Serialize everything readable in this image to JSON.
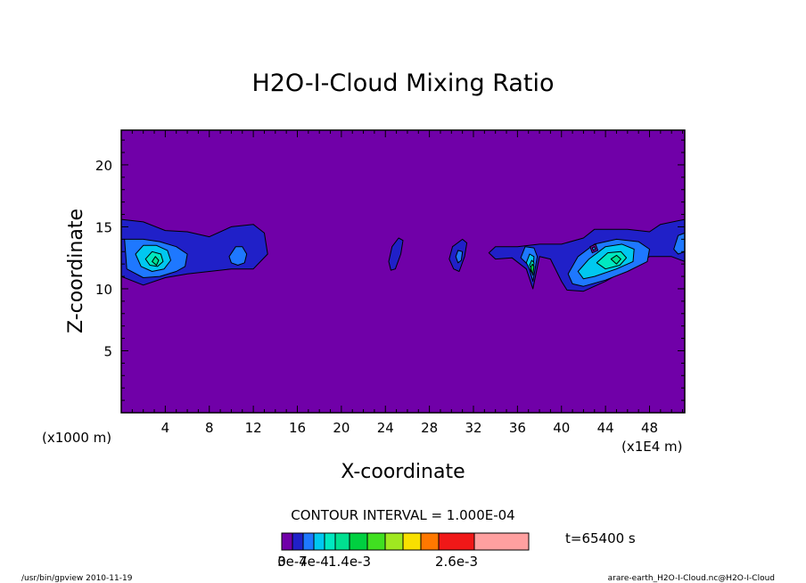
{
  "chart_data": {
    "type": "heatmap",
    "title": "H2O-I-Cloud Mixing Ratio",
    "xlabel": "X-coordinate",
    "ylabel": "Z-coordinate",
    "x_unit_left": "(x1000 m)",
    "x_unit_right": "(x1E4 m)",
    "xlim": [
      0,
      51.2
    ],
    "ylim": [
      0,
      22.8
    ],
    "x_ticks": [
      4,
      8,
      12,
      16,
      20,
      24,
      28,
      32,
      36,
      40,
      44,
      48
    ],
    "x_tick_labels": [
      "4",
      "8",
      "12",
      "16",
      "20",
      "24",
      "28",
      "32",
      "36",
      "40",
      "44",
      "48"
    ],
    "y_ticks": [
      5,
      10,
      15,
      20
    ],
    "y_tick_labels": [
      "5",
      "10",
      "15",
      "20"
    ],
    "contour_interval_label": "CONTOUR INTERVAL = 1.000E-04",
    "time_label": "t=65400 s",
    "colorbar": {
      "colors": [
        "#7000a8",
        "#2020c8",
        "#1e78ff",
        "#00c8f0",
        "#00e8c0",
        "#00e090",
        "#00d040",
        "#40e020",
        "#a0e820",
        "#f8e000",
        "#ff7800",
        "#f01818",
        "#ffa0a0"
      ],
      "tick_labels": [
        "0",
        "3e-4",
        "7e-4",
        "1.4e-3",
        "2.6e-3"
      ],
      "tick_positions": [
        0,
        1,
        3,
        6,
        11.5
      ]
    },
    "cloud_levels": [
      {
        "level": 1,
        "color": "#2020c8",
        "regions": [
          {
            "name": "cloud-west",
            "pts": [
              [
                0,
                15.6
              ],
              [
                2,
                15.4
              ],
              [
                4,
                14.7
              ],
              [
                6,
                14.6
              ],
              [
                8,
                14.2
              ],
              [
                10,
                15
              ],
              [
                12,
                15.2
              ],
              [
                13,
                14.5
              ],
              [
                13.3,
                12.8
              ],
              [
                12,
                11.6
              ],
              [
                10,
                11.6
              ],
              [
                8,
                11.4
              ],
              [
                6,
                11.2
              ],
              [
                4,
                10.9
              ],
              [
                2,
                10.3
              ],
              [
                0,
                11
              ]
            ]
          },
          {
            "name": "cloud-24",
            "pts": [
              [
                24.3,
                12.2
              ],
              [
                24.6,
                13.4
              ],
              [
                25.2,
                14.1
              ],
              [
                25.6,
                13.9
              ],
              [
                25.4,
                12.8
              ],
              [
                24.9,
                11.6
              ],
              [
                24.5,
                11.5
              ]
            ]
          },
          {
            "name": "cloud-30",
            "pts": [
              [
                29.8,
                12.4
              ],
              [
                30.1,
                13.4
              ],
              [
                31,
                14
              ],
              [
                31.4,
                13.7
              ],
              [
                31.2,
                12.6
              ],
              [
                30.7,
                11.4
              ],
              [
                30.2,
                11.6
              ]
            ]
          },
          {
            "name": "cloud-east",
            "pts": [
              [
                33.4,
                12.9
              ],
              [
                34,
                13.4
              ],
              [
                36,
                13.4
              ],
              [
                38,
                13.6
              ],
              [
                40,
                13.6
              ],
              [
                42,
                14.1
              ],
              [
                43,
                14.8
              ],
              [
                46,
                14.8
              ],
              [
                48,
                14.6
              ],
              [
                49,
                15.2
              ],
              [
                51.2,
                15.6
              ],
              [
                51.2,
                12.2
              ],
              [
                50,
                12.6
              ],
              [
                48,
                12.6
              ],
              [
                46,
                11.6
              ],
              [
                44,
                10.6
              ],
              [
                42,
                9.8
              ],
              [
                40.5,
                9.9
              ],
              [
                40,
                10.6
              ],
              [
                39,
                12.4
              ],
              [
                38,
                12.6
              ],
              [
                37.4,
                10
              ],
              [
                36.8,
                11.6
              ],
              [
                35.5,
                12.5
              ],
              [
                34,
                12.4
              ]
            ]
          }
        ]
      },
      {
        "level": 2,
        "color": "#1e78ff",
        "regions": [
          {
            "name": "core-west-1",
            "pts": [
              [
                0.3,
                14
              ],
              [
                2,
                14
              ],
              [
                3.5,
                13.8
              ],
              [
                5,
                13.4
              ],
              [
                6,
                12.8
              ],
              [
                5.8,
                11.8
              ],
              [
                5,
                11.4
              ],
              [
                3.5,
                11
              ],
              [
                2,
                10.9
              ],
              [
                0.5,
                11.6
              ]
            ]
          },
          {
            "name": "core-west-2",
            "pts": [
              [
                9.8,
                12.6
              ],
              [
                10.4,
                13.4
              ],
              [
                11,
                13.4
              ],
              [
                11.4,
                12.8
              ],
              [
                11.2,
                12.1
              ],
              [
                10.6,
                11.9
              ],
              [
                10,
                12.1
              ]
            ]
          },
          {
            "name": "core-30",
            "pts": [
              [
                30.4,
                12.6
              ],
              [
                30.6,
                13.1
              ],
              [
                31,
                13
              ],
              [
                30.9,
                12.3
              ],
              [
                30.6,
                12.1
              ]
            ]
          },
          {
            "name": "core-37",
            "pts": [
              [
                36.3,
                12.5
              ],
              [
                36.7,
                13.4
              ],
              [
                37.5,
                13.3
              ],
              [
                37.8,
                12.6
              ],
              [
                37.4,
                10.6
              ],
              [
                37,
                11.9
              ]
            ]
          },
          {
            "name": "core-east",
            "pts": [
              [
                40.6,
                11.2
              ],
              [
                41.5,
                12.6
              ],
              [
                43,
                13.6
              ],
              [
                45,
                14
              ],
              [
                47,
                13.8
              ],
              [
                48,
                13.2
              ],
              [
                47.8,
                12.2
              ],
              [
                46,
                11.4
              ],
              [
                44,
                10.7
              ],
              [
                42,
                10.2
              ],
              [
                41,
                10.4
              ]
            ]
          },
          {
            "name": "core-east-right",
            "pts": [
              [
                50.2,
                13.2
              ],
              [
                50.6,
                14.3
              ],
              [
                51.2,
                14.5
              ],
              [
                51.2,
                13
              ],
              [
                50.6,
                12.8
              ]
            ]
          }
        ]
      },
      {
        "level": 3,
        "color": "#00c8f0",
        "regions": [
          {
            "name": "west-3",
            "pts": [
              [
                1.3,
                12.8
              ],
              [
                2,
                13.5
              ],
              [
                3.2,
                13.5
              ],
              [
                4.2,
                13.1
              ],
              [
                4.5,
                12.3
              ],
              [
                3.9,
                11.6
              ],
              [
                2.8,
                11.4
              ],
              [
                1.8,
                11.8
              ]
            ]
          },
          {
            "name": "east-3",
            "pts": [
              [
                41.5,
                11.4
              ],
              [
                42.5,
                12.4
              ],
              [
                44,
                13.4
              ],
              [
                45.5,
                13.6
              ],
              [
                46.6,
                13.2
              ],
              [
                46.5,
                12.2
              ],
              [
                45,
                11.6
              ],
              [
                43,
                11
              ],
              [
                42,
                10.8
              ]
            ]
          },
          {
            "name": "37-3",
            "pts": [
              [
                36.8,
                12.1
              ],
              [
                37.1,
                12.8
              ],
              [
                37.5,
                12.6
              ],
              [
                37.4,
                11.2
              ],
              [
                37.1,
                11.6
              ]
            ]
          }
        ]
      },
      {
        "level": 4,
        "color": "#00e8c0",
        "regions": [
          {
            "name": "west-4",
            "pts": [
              [
                2.2,
                12.4
              ],
              [
                2.8,
                13
              ],
              [
                3.6,
                12.8
              ],
              [
                3.8,
                12.2
              ],
              [
                3.3,
                11.8
              ],
              [
                2.6,
                11.9
              ]
            ]
          },
          {
            "name": "east-4",
            "pts": [
              [
                43.2,
                12.1
              ],
              [
                44.2,
                12.9
              ],
              [
                45.4,
                13
              ],
              [
                45.9,
                12.5
              ],
              [
                45.3,
                11.9
              ],
              [
                44,
                11.6
              ]
            ]
          },
          {
            "name": "37-4",
            "pts": [
              [
                37.1,
                11.9
              ],
              [
                37.3,
                12.3
              ],
              [
                37.5,
                12.1
              ],
              [
                37.4,
                11.4
              ]
            ]
          }
        ]
      },
      {
        "level": 5,
        "color": "#00e090",
        "regions": [
          {
            "name": "west-5",
            "pts": [
              [
                2.8,
                12.2
              ],
              [
                3.1,
                12.6
              ],
              [
                3.4,
                12.3
              ],
              [
                3.2,
                11.9
              ]
            ]
          },
          {
            "name": "east-5",
            "pts": [
              [
                44.5,
                12.4
              ],
              [
                45,
                12.7
              ],
              [
                45.4,
                12.4
              ],
              [
                45,
                12
              ]
            ]
          }
        ]
      },
      {
        "level": 6,
        "color": "#00d040",
        "regions": [
          {
            "name": "37-6",
            "pts": [
              [
                37.2,
                11.7
              ],
              [
                37.35,
                12
              ],
              [
                37.5,
                11.8
              ],
              [
                37.4,
                11.1
              ]
            ]
          }
        ]
      }
    ],
    "special_regions": [
      {
        "name": "purple-spot",
        "color": "#7000a8",
        "pts": [
          [
            42.6,
            13.4
          ],
          [
            43.1,
            13.6
          ],
          [
            43.3,
            13.1
          ],
          [
            42.8,
            12.9
          ]
        ]
      },
      {
        "name": "blue-pocket",
        "color": "#1e78ff",
        "pts": [
          [
            42.8,
            13.3
          ],
          [
            43,
            13.4
          ],
          [
            43.1,
            13.2
          ],
          [
            42.9,
            13.1
          ]
        ]
      }
    ]
  },
  "footer": {
    "left": "/usr/bin/gpview   2010-11-19",
    "right": "arare-earth_H2O-I-Cloud.nc@H2O-I-Cloud"
  }
}
